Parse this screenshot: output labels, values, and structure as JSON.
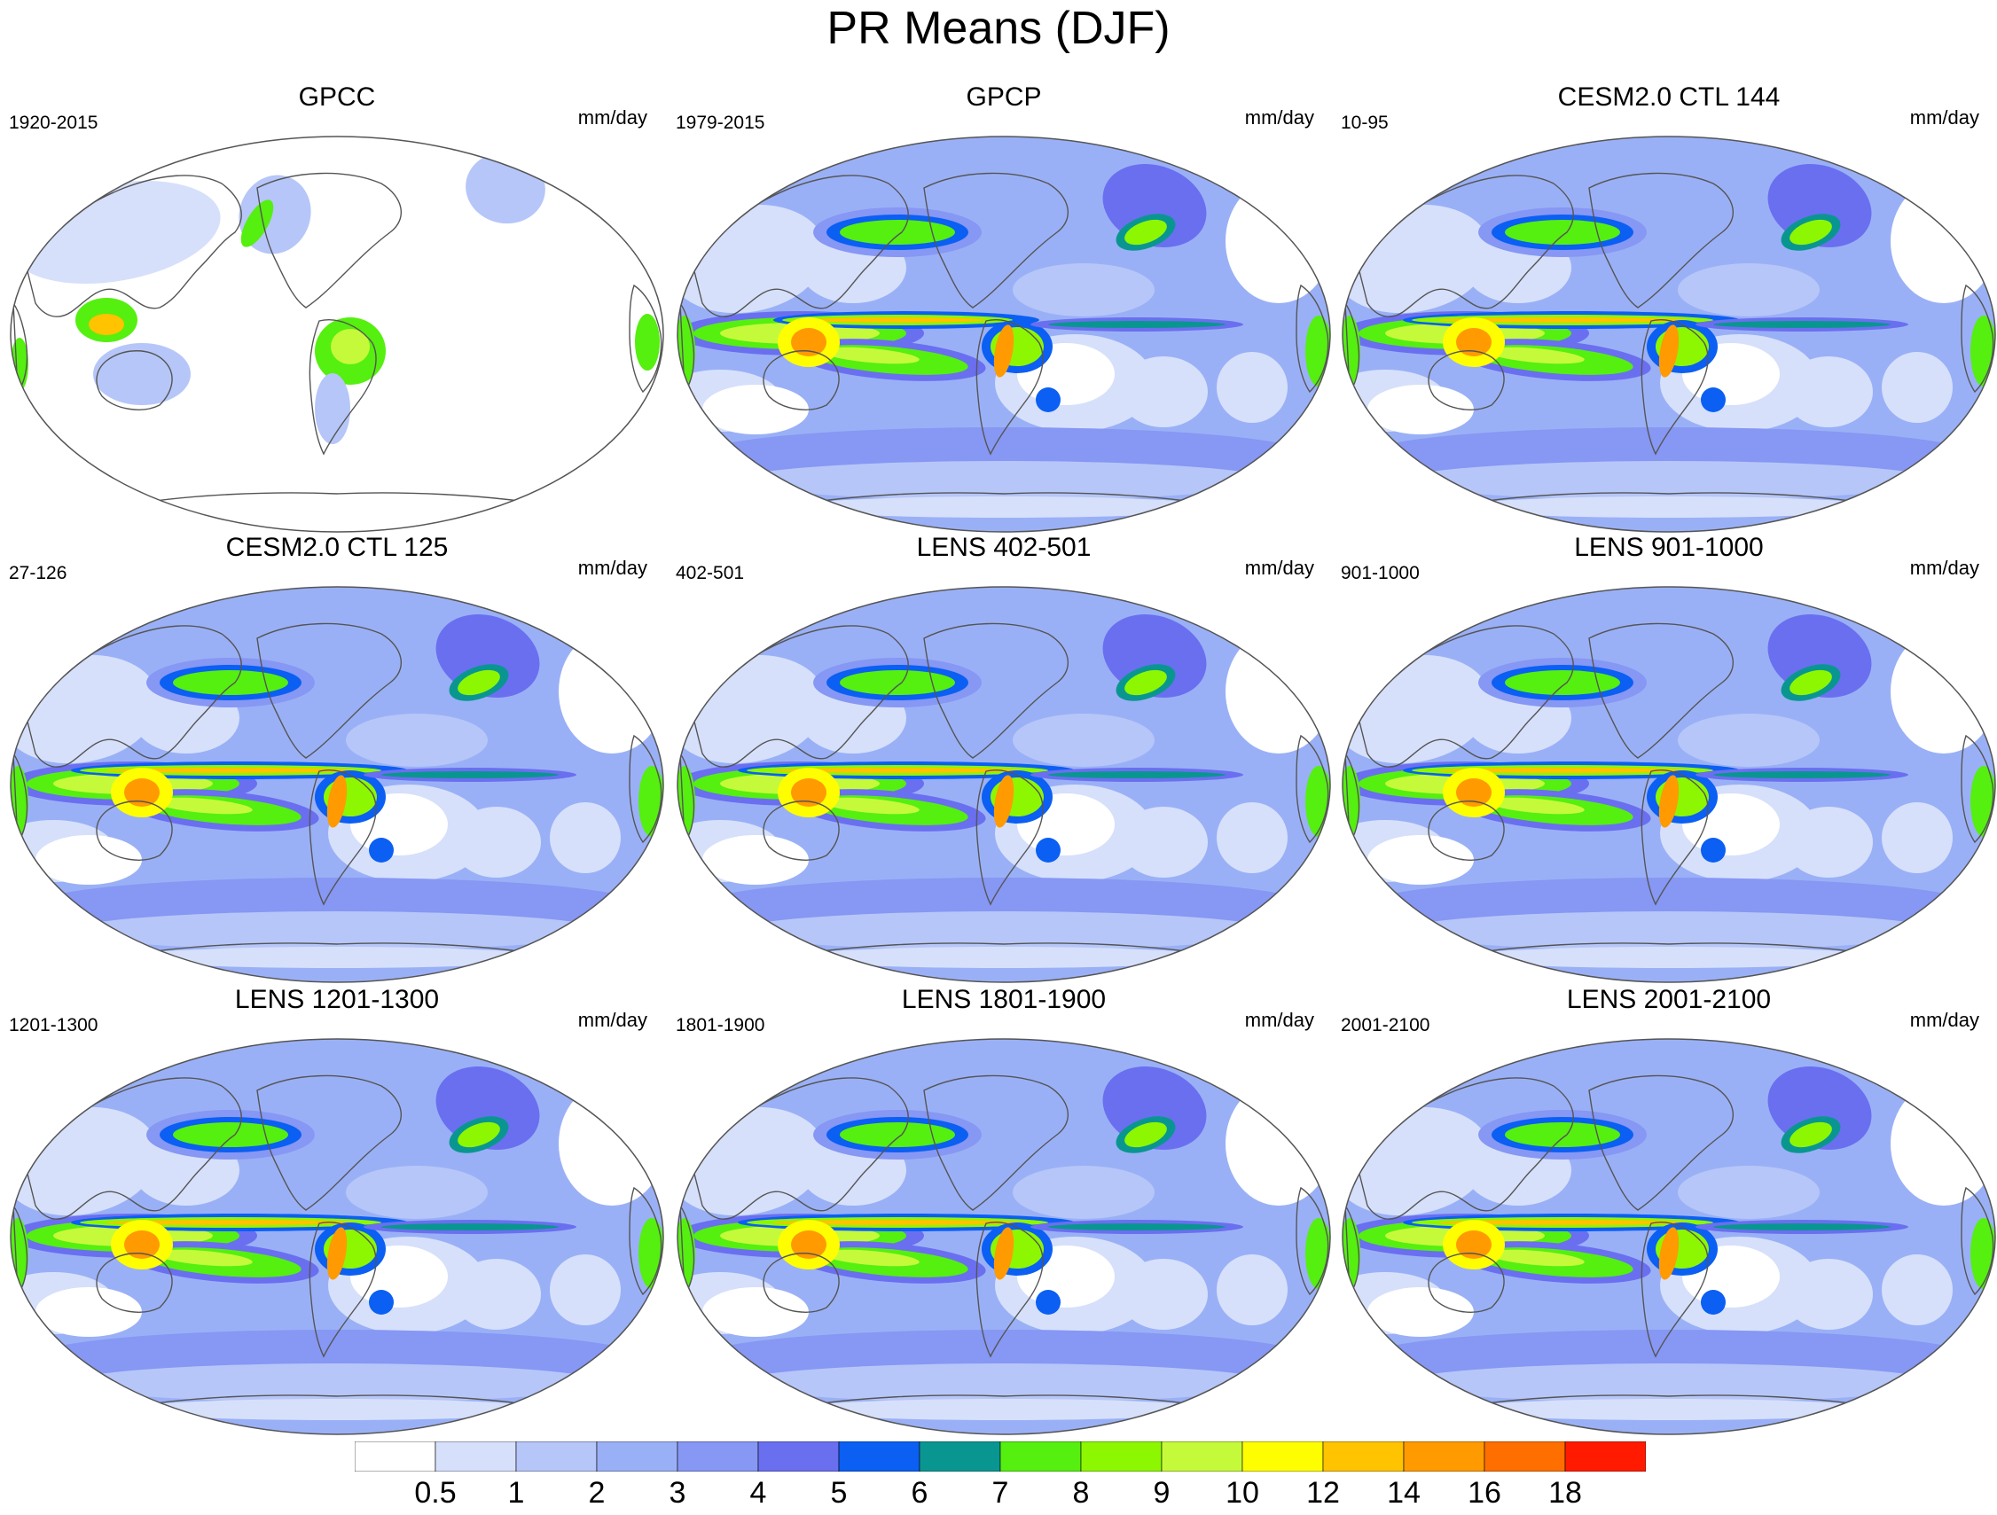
{
  "title": "PR Means (DJF)",
  "units": "mm/day",
  "panels": [
    {
      "title": "GPCC",
      "period": "1920-2015",
      "type": "obs_land"
    },
    {
      "title": "GPCP",
      "period": "1979-2015",
      "type": "obs"
    },
    {
      "title": "CESM2.0 CTL 144",
      "period": "10-95",
      "type": "model"
    },
    {
      "title": "CESM2.0 CTL 125",
      "period": "27-126",
      "type": "model"
    },
    {
      "title": "LENS 402-501",
      "period": "402-501",
      "type": "model"
    },
    {
      "title": "LENS 901-1000",
      "period": "901-1000",
      "type": "model"
    },
    {
      "title": "LENS 1201-1300",
      "period": "1201-1300",
      "type": "model"
    },
    {
      "title": "LENS 1801-1900",
      "period": "1801-1900",
      "type": "model"
    },
    {
      "title": "LENS 2001-2100",
      "period": "2001-2100",
      "type": "model"
    }
  ],
  "colorbar": {
    "labels": [
      "0.5",
      "1",
      "2",
      "3",
      "4",
      "5",
      "6",
      "7",
      "8",
      "9",
      "10",
      "12",
      "14",
      "16",
      "18"
    ],
    "colors": [
      "#ffffff",
      "#d6e0fb",
      "#b6c6f8",
      "#9ab0f6",
      "#8697f4",
      "#6a6ff0",
      "#0b5ff2",
      "#0a9690",
      "#55ef10",
      "#8cf700",
      "#c5fa3a",
      "#fffe00",
      "#ffc300",
      "#ff9a00",
      "#ff6f00",
      "#ff1a00"
    ]
  }
}
